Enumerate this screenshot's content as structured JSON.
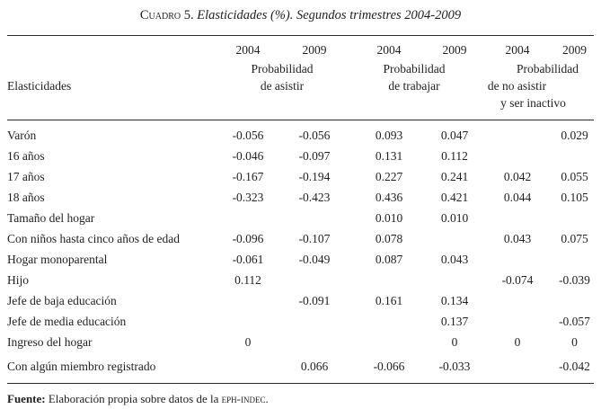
{
  "title": {
    "prefix": "Cuadro 5.",
    "italic_part": " Elasticidades (%). Segundos trimestres 2004-2009"
  },
  "table": {
    "corner_label": "Elasticidades",
    "groups": [
      {
        "years": [
          "2004",
          "2009"
        ],
        "caption": [
          "Probabilidad",
          "de asistir",
          ""
        ]
      },
      {
        "years": [
          "2004",
          "2009"
        ],
        "caption": [
          "Probabilidad",
          "de trabajar",
          ""
        ]
      },
      {
        "years": [
          "2004",
          "2009"
        ],
        "caption": [
          "Probabilidad",
          "de no asistir",
          "y ser inactivo"
        ]
      }
    ],
    "rows": [
      {
        "label": "Varón",
        "values": [
          "-0.056",
          "-0.056",
          "0.093",
          "0.047",
          "",
          "0.029"
        ]
      },
      {
        "label": "16 años",
        "values": [
          "-0.046",
          "-0.097",
          "0.131",
          "0.112",
          "",
          ""
        ]
      },
      {
        "label": "17 años",
        "values": [
          "-0.167",
          "-0.194",
          "0.227",
          "0.241",
          "0.042",
          "0.055"
        ]
      },
      {
        "label": "18 años",
        "values": [
          "-0.323",
          "-0.423",
          "0.436",
          "0.421",
          "0.044",
          "0.105"
        ]
      },
      {
        "label": "Tamaño del hogar",
        "values": [
          "",
          "",
          "0.010",
          "0.010",
          "",
          ""
        ]
      },
      {
        "label": "Con niños hasta cinco años de edad",
        "values": [
          "-0.096",
          "-0.107",
          "0.078",
          "",
          "0.043",
          "0.075"
        ]
      },
      {
        "label": "Hogar monoparental",
        "values": [
          "-0.061",
          "-0.049",
          "0.087",
          "0.043",
          "",
          ""
        ]
      },
      {
        "label": "Hijo",
        "values": [
          "0.112",
          "",
          "",
          "",
          "-0.074",
          "-0.039"
        ]
      },
      {
        "label": "Jefe de baja educación",
        "values": [
          "",
          "-0.091",
          "0.161",
          "0.134",
          "",
          ""
        ]
      },
      {
        "label": "Jefe de media educación",
        "values": [
          "",
          "",
          "",
          "0.137",
          "",
          "-0.057"
        ]
      },
      {
        "label": "Ingreso del hogar",
        "values": [
          "0",
          "",
          "",
          "0",
          "0",
          "0"
        ]
      },
      {
        "label": "Con algún miembro registrado",
        "values": [
          "",
          "0.066",
          "-0.066",
          "-0.033",
          "",
          "-0.042"
        ]
      }
    ]
  },
  "footnote": {
    "label": "Fuente:",
    "text": " Elaboración propia sobre datos de la ",
    "source_acronym": "eph-indec",
    "period": "."
  }
}
